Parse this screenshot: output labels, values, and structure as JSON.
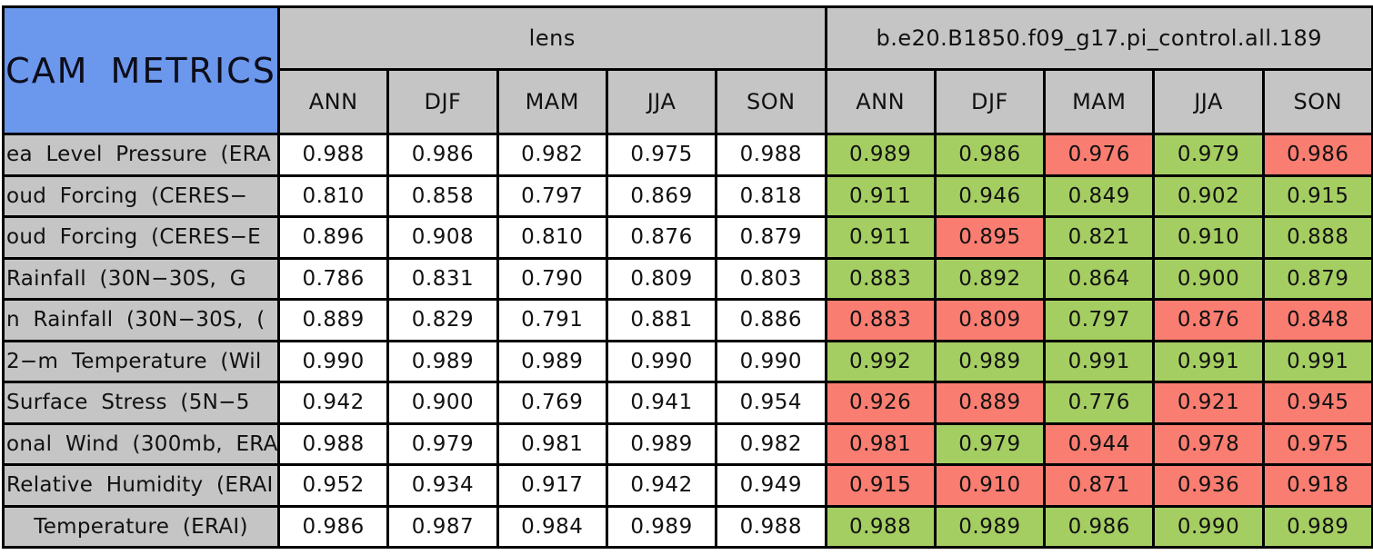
{
  "title": "CAM METRICS",
  "colors": {
    "border": "#000000",
    "grey_header": "#C5C5C5",
    "blue_title": "#6B97EC",
    "green_cell": "#A5CE62",
    "red_cell": "#FA7D71",
    "white_cell": "#FFFFFF"
  },
  "table": {
    "groups": [
      {
        "label": "lens",
        "seasons": [
          "ANN",
          "DJF",
          "MAM",
          "JJA",
          "SON"
        ]
      },
      {
        "label": "b.e20.B1850.f09_g17.pi_control.all.189",
        "seasons": [
          "ANN",
          "DJF",
          "MAM",
          "JJA",
          "SON"
        ]
      }
    ],
    "rows": [
      {
        "label": "ea Level Pressure (ERA",
        "lens_values": [
          "0.988",
          "0.986",
          "0.982",
          "0.975",
          "0.988"
        ],
        "control_values": [
          "0.989",
          "0.986",
          "0.976",
          "0.979",
          "0.986"
        ],
        "control_status": [
          "green",
          "green",
          "red",
          "green",
          "red"
        ]
      },
      {
        "label": "oud Forcing (CERES−",
        "lens_values": [
          "0.810",
          "0.858",
          "0.797",
          "0.869",
          "0.818"
        ],
        "control_values": [
          "0.911",
          "0.946",
          "0.849",
          "0.902",
          "0.915"
        ],
        "control_status": [
          "green",
          "green",
          "green",
          "green",
          "green"
        ]
      },
      {
        "label": "oud Forcing (CERES−E",
        "lens_values": [
          "0.896",
          "0.908",
          "0.810",
          "0.876",
          "0.879"
        ],
        "control_values": [
          "0.911",
          "0.895",
          "0.821",
          "0.910",
          "0.888"
        ],
        "control_status": [
          "green",
          "red",
          "green",
          "green",
          "green"
        ]
      },
      {
        "label": "Rainfall (30N−30S, G",
        "lens_values": [
          "0.786",
          "0.831",
          "0.790",
          "0.809",
          "0.803"
        ],
        "control_values": [
          "0.883",
          "0.892",
          "0.864",
          "0.900",
          "0.879"
        ],
        "control_status": [
          "green",
          "green",
          "green",
          "green",
          "green"
        ]
      },
      {
        "label": "n Rainfall (30N−30S, (",
        "lens_values": [
          "0.889",
          "0.829",
          "0.791",
          "0.881",
          "0.886"
        ],
        "control_values": [
          "0.883",
          "0.809",
          "0.797",
          "0.876",
          "0.848"
        ],
        "control_status": [
          "red",
          "red",
          "green",
          "red",
          "red"
        ]
      },
      {
        "label": "2−m Temperature (Wil",
        "lens_values": [
          "0.990",
          "0.989",
          "0.989",
          "0.990",
          "0.990"
        ],
        "control_values": [
          "0.992",
          "0.989",
          "0.991",
          "0.991",
          "0.991"
        ],
        "control_status": [
          "green",
          "green",
          "green",
          "green",
          "green"
        ]
      },
      {
        "label": "Surface Stress (5N−5",
        "lens_values": [
          "0.942",
          "0.900",
          "0.769",
          "0.941",
          "0.954"
        ],
        "control_values": [
          "0.926",
          "0.889",
          "0.776",
          "0.921",
          "0.945"
        ],
        "control_status": [
          "red",
          "red",
          "green",
          "red",
          "red"
        ]
      },
      {
        "label": "onal Wind (300mb, ERA",
        "lens_values": [
          "0.988",
          "0.979",
          "0.981",
          "0.989",
          "0.982"
        ],
        "control_values": [
          "0.981",
          "0.979",
          "0.944",
          "0.978",
          "0.975"
        ],
        "control_status": [
          "red",
          "green",
          "red",
          "red",
          "red"
        ]
      },
      {
        "label": "Relative Humidity (ERAI",
        "lens_values": [
          "0.952",
          "0.934",
          "0.917",
          "0.942",
          "0.949"
        ],
        "control_values": [
          "0.915",
          "0.910",
          "0.871",
          "0.936",
          "0.918"
        ],
        "control_status": [
          "red",
          "red",
          "red",
          "red",
          "red"
        ]
      },
      {
        "label": "Temperature (ERAI)",
        "lens_values": [
          "0.986",
          "0.987",
          "0.984",
          "0.989",
          "0.988"
        ],
        "control_values": [
          "0.988",
          "0.989",
          "0.986",
          "0.990",
          "0.989"
        ],
        "control_status": [
          "green",
          "green",
          "green",
          "green",
          "green"
        ]
      }
    ]
  },
  "chart_data": {
    "type": "table",
    "title": "CAM METRICS",
    "column_groups": [
      "lens",
      "b.e20.B1850.f09_g17.pi_control.all.189"
    ],
    "columns": [
      "ANN",
      "DJF",
      "MAM",
      "JJA",
      "SON",
      "ANN",
      "DJF",
      "MAM",
      "JJA",
      "SON"
    ],
    "row_labels": [
      "ea Level Pressure (ERA",
      "oud Forcing (CERES−",
      "oud Forcing (CERES−E",
      "Rainfall (30N−30S, G",
      "n Rainfall (30N−30S, (",
      "2−m Temperature (Wil",
      "Surface Stress (5N−5",
      "onal Wind (300mb, ERA",
      "Relative Humidity (ERAI",
      "Temperature (ERAI)"
    ],
    "values": [
      [
        0.988,
        0.986,
        0.982,
        0.975,
        0.988,
        0.989,
        0.986,
        0.976,
        0.979,
        0.986
      ],
      [
        0.81,
        0.858,
        0.797,
        0.869,
        0.818,
        0.911,
        0.946,
        0.849,
        0.902,
        0.915
      ],
      [
        0.896,
        0.908,
        0.81,
        0.876,
        0.879,
        0.911,
        0.895,
        0.821,
        0.91,
        0.888
      ],
      [
        0.786,
        0.831,
        0.79,
        0.809,
        0.803,
        0.883,
        0.892,
        0.864,
        0.9,
        0.879
      ],
      [
        0.889,
        0.829,
        0.791,
        0.881,
        0.886,
        0.883,
        0.809,
        0.797,
        0.876,
        0.848
      ],
      [
        0.99,
        0.989,
        0.989,
        0.99,
        0.99,
        0.992,
        0.989,
        0.991,
        0.991,
        0.991
      ],
      [
        0.942,
        0.9,
        0.769,
        0.941,
        0.954,
        0.926,
        0.889,
        0.776,
        0.921,
        0.945
      ],
      [
        0.988,
        0.979,
        0.981,
        0.989,
        0.982,
        0.981,
        0.979,
        0.944,
        0.978,
        0.975
      ],
      [
        0.952,
        0.934,
        0.917,
        0.942,
        0.949,
        0.915,
        0.91,
        0.871,
        0.936,
        0.918
      ],
      [
        0.986,
        0.987,
        0.984,
        0.989,
        0.988,
        0.988,
        0.989,
        0.986,
        0.99,
        0.989
      ]
    ],
    "cell_highlights_right_group": [
      [
        "green",
        "green",
        "red",
        "green",
        "red"
      ],
      [
        "green",
        "green",
        "green",
        "green",
        "green"
      ],
      [
        "green",
        "red",
        "green",
        "green",
        "green"
      ],
      [
        "green",
        "green",
        "green",
        "green",
        "green"
      ],
      [
        "red",
        "red",
        "green",
        "red",
        "red"
      ],
      [
        "green",
        "green",
        "green",
        "green",
        "green"
      ],
      [
        "red",
        "red",
        "green",
        "red",
        "red"
      ],
      [
        "red",
        "green",
        "red",
        "red",
        "red"
      ],
      [
        "red",
        "red",
        "red",
        "red",
        "red"
      ],
      [
        "green",
        "green",
        "green",
        "green",
        "green"
      ]
    ]
  }
}
